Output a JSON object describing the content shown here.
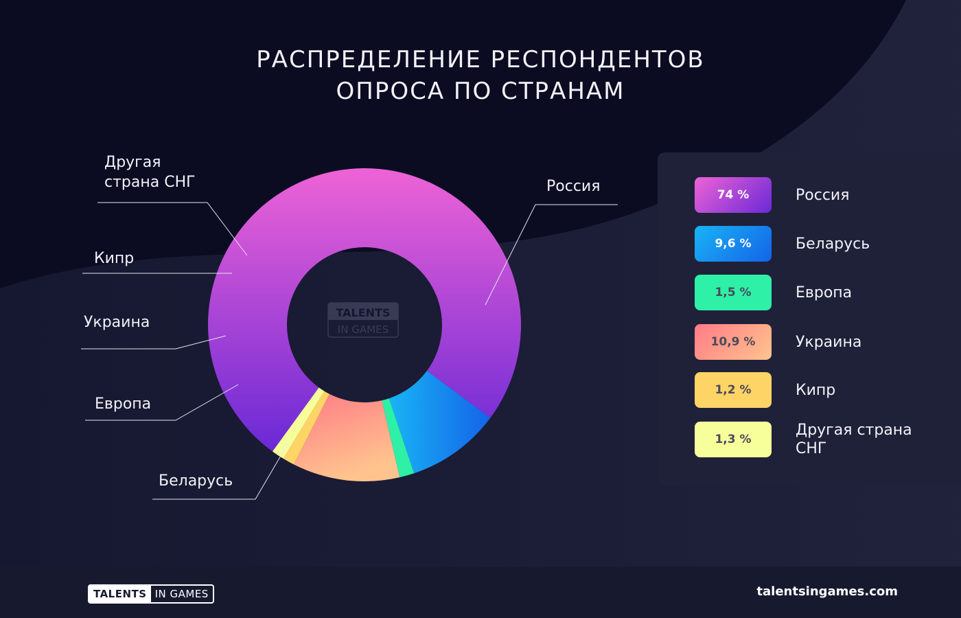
{
  "title_lines": [
    "РАСПРЕДЕЛЕНИЕ РЕСПОНДЕНТОВ",
    "ОПРОСА ПО СТРАНАМ"
  ],
  "chart_data": {
    "type": "pie",
    "donut": true,
    "unit": "%",
    "slices": [
      {
        "label": "Россия",
        "value": 74,
        "value_label": "74 %",
        "color_start": "#ee63d6",
        "color_end": "#6a29d6",
        "text_color": "#ffffff"
      },
      {
        "label": "Беларусь",
        "value": 9.6,
        "value_label": "9,6 %",
        "color_start": "#19b4f5",
        "color_end": "#1463e8",
        "text_color": "#ffffff"
      },
      {
        "label": "Европа",
        "value": 1.5,
        "value_label": "1,5 %",
        "color_start": "#2ef0a6",
        "color_end": "#2ef0a6",
        "text_color": "#4a4a5a"
      },
      {
        "label": "Украина",
        "value": 10.9,
        "value_label": "10,9 %",
        "color_start": "#ff7b86",
        "color_end": "#ffc48e",
        "text_color": "#4a4a5a"
      },
      {
        "label": "Кипр",
        "value": 1.2,
        "value_label": "1,2 %",
        "color_start": "#ffd466",
        "color_end": "#ffd466",
        "text_color": "#4a4a5a"
      },
      {
        "label": "Другая страна СНГ",
        "value": 1.3,
        "value_label": "1,3 %",
        "color_start": "#f6ff9a",
        "color_end": "#f6ff9a",
        "text_color": "#4a4a5a"
      }
    ],
    "legend_placement": "right"
  },
  "callouts": {
    "russia": [
      "Россия"
    ],
    "belarus": [
      "Беларусь"
    ],
    "europe": [
      "Европа"
    ],
    "ukraine": [
      "Украина"
    ],
    "cyprus": [
      "Кипр"
    ],
    "other": [
      "Другая",
      "страна СНГ"
    ]
  },
  "watermark": {
    "line1": "TALENTS",
    "line2": "IN GAMES"
  },
  "footer": {
    "logo_part1": "TALENTS",
    "logo_part2": "IN GAMES",
    "site": "talentsingames.com"
  },
  "colors": {
    "background": "#0b0c22",
    "legend_panel": "#1f2139",
    "footer": "#171a2f"
  }
}
